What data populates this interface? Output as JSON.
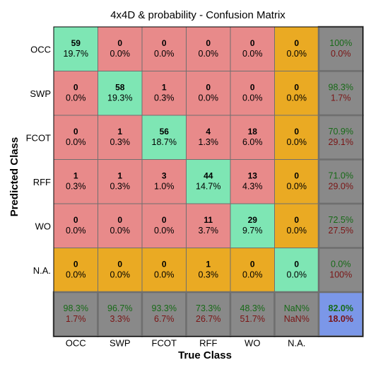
{
  "chart_data": {
    "type": "heatmap",
    "title": "4x4D & probability -  Confusion Matrix",
    "xlabel": "True Class",
    "ylabel": "Predicted Class",
    "x_categories": [
      "OCC",
      "SWP",
      "FCOT",
      "RFF",
      "WO",
      "N.A."
    ],
    "y_categories": [
      "OCC",
      "SWP",
      "FCOT",
      "RFF",
      "WO",
      "N.A."
    ],
    "counts": [
      [
        59,
        0,
        0,
        0,
        0,
        0
      ],
      [
        0,
        58,
        1,
        0,
        0,
        0
      ],
      [
        0,
        1,
        56,
        4,
        18,
        0
      ],
      [
        1,
        1,
        3,
        44,
        13,
        0
      ],
      [
        0,
        0,
        0,
        11,
        29,
        0
      ],
      [
        0,
        0,
        0,
        1,
        0,
        0
      ]
    ],
    "percents": [
      [
        "19.7%",
        "0.0%",
        "0.0%",
        "0.0%",
        "0.0%",
        "0.0%"
      ],
      [
        "0.0%",
        "19.3%",
        "0.3%",
        "0.0%",
        "0.0%",
        "0.0%"
      ],
      [
        "0.0%",
        "0.3%",
        "18.7%",
        "1.3%",
        "6.0%",
        "0.0%"
      ],
      [
        "0.3%",
        "0.3%",
        "1.0%",
        "14.7%",
        "4.3%",
        "0.0%"
      ],
      [
        "0.0%",
        "0.0%",
        "0.0%",
        "3.7%",
        "9.7%",
        "0.0%"
      ],
      [
        "0.0%",
        "0.0%",
        "0.0%",
        "0.3%",
        "0.0%",
        "0.0%"
      ]
    ],
    "row_summary": [
      {
        "correct": "100%",
        "wrong": "0.0%"
      },
      {
        "correct": "98.3%",
        "wrong": "1.7%"
      },
      {
        "correct": "70.9%",
        "wrong": "29.1%"
      },
      {
        "correct": "71.0%",
        "wrong": "29.0%"
      },
      {
        "correct": "72.5%",
        "wrong": "27.5%"
      },
      {
        "correct": "0.0%",
        "wrong": "100%"
      }
    ],
    "col_summary": [
      {
        "correct": "98.3%",
        "wrong": "1.7%"
      },
      {
        "correct": "96.7%",
        "wrong": "3.3%"
      },
      {
        "correct": "93.3%",
        "wrong": "6.7%"
      },
      {
        "correct": "73.3%",
        "wrong": "26.7%"
      },
      {
        "correct": "48.3%",
        "wrong": "51.7%"
      },
      {
        "correct": "NaN%",
        "wrong": "NaN%"
      }
    ],
    "overall": {
      "correct": "82.0%",
      "wrong": "18.0%"
    },
    "colors": {
      "correct_cell": "#7ee6b4",
      "wrong_cell": "#e88a8a",
      "na_cell": "#eaaa23",
      "summary_cell": "#898989",
      "overall_cell": "#7b97e8",
      "good_text": "#176a17",
      "bad_text": "#7a1515",
      "grid_line": "#6f6f6f"
    }
  }
}
